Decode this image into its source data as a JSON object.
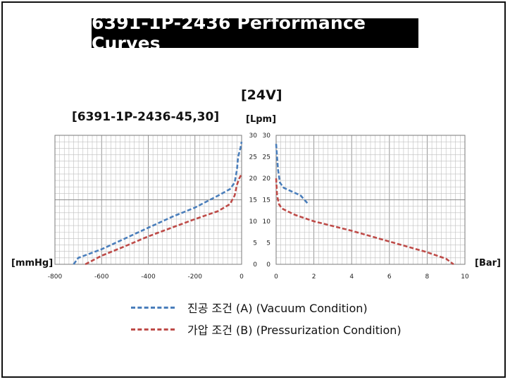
{
  "title": "6391-1P-2436  Performance Curves",
  "voltage_label": "[24V]",
  "model_label": "[6391-1P-2436-45,30]",
  "y_axis_label": "[Lpm]",
  "left_x_axis_label": "[mmHg]",
  "right_x_axis_label": "[Bar]",
  "colors": {
    "vacuum": "#4a7ebb",
    "pressure": "#be4b48",
    "grid": "#bfbfbf"
  },
  "chart_data": [
    {
      "type": "line",
      "xlabel": "[mmHg]",
      "ylabel": "[Lpm]",
      "xlim": [
        -800,
        0
      ],
      "ylim": [
        0,
        30
      ],
      "x_ticks": [
        "-800",
        "-600",
        "-400",
        "-200",
        "0"
      ],
      "y_ticks": [
        "0",
        "5",
        "10",
        "15",
        "20",
        "25",
        "30"
      ],
      "grid": true,
      "series": [
        {
          "name": "진공 조건 (A) (Vacuum Condition)",
          "color": "#4a7ebb",
          "points": [
            [
              -720,
              0
            ],
            [
              -700,
              1.5
            ],
            [
              -600,
              3.5
            ],
            [
              -500,
              6
            ],
            [
              -400,
              8.5
            ],
            [
              -300,
              11
            ],
            [
              -200,
              13.2
            ],
            [
              -100,
              16
            ],
            [
              -50,
              17.5
            ],
            [
              -30,
              19
            ],
            [
              -20,
              22
            ],
            [
              -15,
              25
            ],
            [
              -5,
              27
            ],
            [
              0,
              28.5
            ]
          ]
        },
        {
          "name": "가압 조건 (B) (Pressurization Condition)",
          "color": "#be4b48",
          "points": [
            [
              -670,
              0
            ],
            [
              -600,
              2
            ],
            [
              -500,
              4.2
            ],
            [
              -400,
              6.5
            ],
            [
              -300,
              8.5
            ],
            [
              -200,
              10.5
            ],
            [
              -100,
              12.4
            ],
            [
              -50,
              14
            ],
            [
              -30,
              16
            ],
            [
              -20,
              18.5
            ],
            [
              -10,
              20
            ],
            [
              0,
              21
            ]
          ]
        }
      ]
    },
    {
      "type": "line",
      "xlabel": "[Bar]",
      "ylabel": "[Lpm]",
      "xlim": [
        0,
        10
      ],
      "ylim": [
        0,
        30
      ],
      "x_ticks": [
        "0",
        "2",
        "4",
        "6",
        "8",
        "10"
      ],
      "y_ticks": [
        "0",
        "5",
        "10",
        "15",
        "20",
        "25",
        "30"
      ],
      "grid": true,
      "series": [
        {
          "name": "진공 조건 (A) (Vacuum Condition)",
          "color": "#4a7ebb",
          "points": [
            [
              0,
              28
            ],
            [
              0.05,
              25
            ],
            [
              0.1,
              22
            ],
            [
              0.2,
              19
            ],
            [
              0.4,
              17.8
            ],
            [
              0.8,
              17
            ],
            [
              1.3,
              16
            ],
            [
              1.7,
              14
            ]
          ]
        },
        {
          "name": "가압 조건 (B) (Pressurization Condition)",
          "color": "#be4b48",
          "points": [
            [
              0,
              20
            ],
            [
              0.05,
              16
            ],
            [
              0.15,
              14
            ],
            [
              0.3,
              13
            ],
            [
              1,
              11.5
            ],
            [
              2,
              10
            ],
            [
              4,
              7.8
            ],
            [
              6,
              5.3
            ],
            [
              8,
              2.8
            ],
            [
              9,
              1.3
            ],
            [
              9.4,
              0
            ]
          ]
        }
      ]
    }
  ],
  "legend": [
    {
      "label": "진공 조건 (A) (Vacuum Condition)",
      "color": "#4a7ebb"
    },
    {
      "label": "가압 조건 (B) (Pressurization Condition)",
      "color": "#be4b48"
    }
  ]
}
